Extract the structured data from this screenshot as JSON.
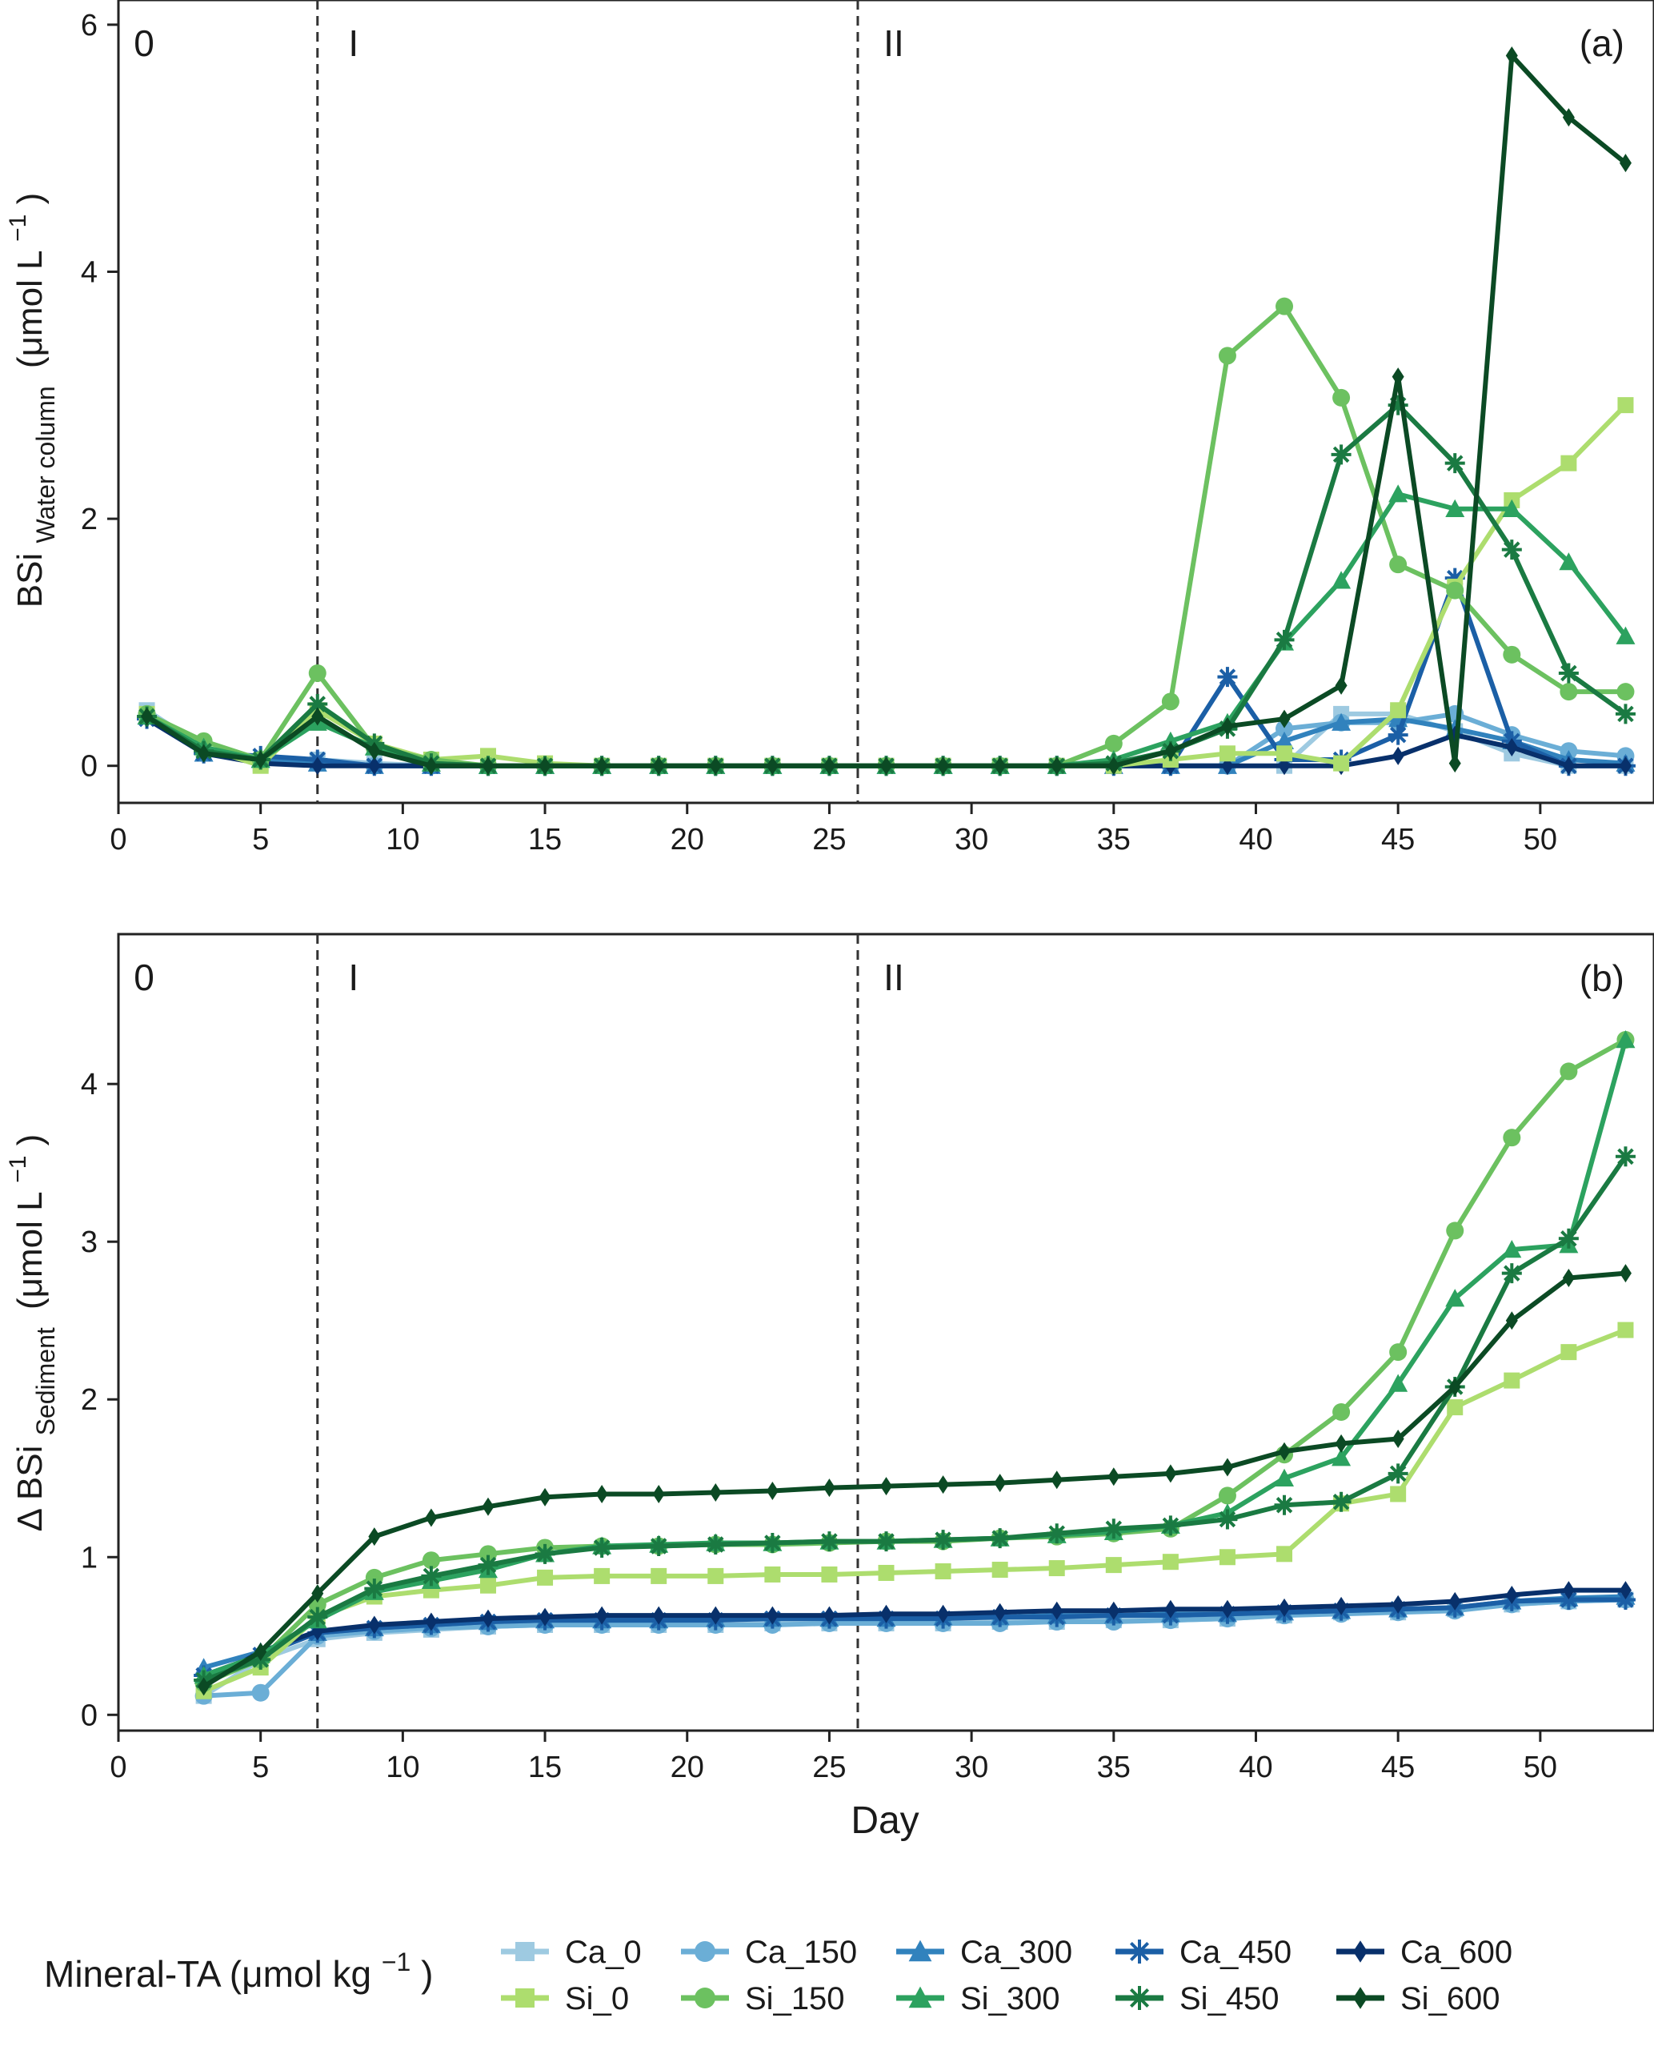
{
  "panels": [
    {
      "panel_label": "(a)",
      "ylabel_main": "BSi",
      "ylabel_sub": "Water column",
      "ylabel_unit_open": "(μmol L",
      "ylabel_unit_sup": "−1",
      "ylabel_unit_close": ")"
    },
    {
      "panel_label": "(b)",
      "ylabel_main": "Δ BSi",
      "ylabel_sub": "Sediment",
      "ylabel_unit_open": "(μmol L",
      "ylabel_unit_sup": "−1",
      "ylabel_unit_close": ")"
    }
  ],
  "phases": [
    {
      "label": "0",
      "start": 0
    },
    {
      "label": "I",
      "start": 7
    },
    {
      "label": "II",
      "start": 26
    }
  ],
  "xlabel": "Day",
  "legend": {
    "title": "Mineral-TA (μmol kg",
    "title_sup": "−1",
    "title_close": ")",
    "placement": "bottom"
  },
  "colors": {
    "Ca_0": "#9ecae1",
    "Ca_150": "#6baed6",
    "Ca_300": "#3182bd",
    "Ca_450": "#1b5fa6",
    "Ca_600": "#08306b",
    "Si_0": "#addd6e",
    "Si_150": "#6cc160",
    "Si_300": "#2ca25f",
    "Si_450": "#1a7a42",
    "Si_600": "#0b4a24"
  },
  "chart_data": [
    {
      "type": "line",
      "panel": "a",
      "xlim": [
        0,
        54
      ],
      "ylim": [
        -0.3,
        6.2
      ],
      "xticks": [
        0,
        5,
        10,
        15,
        20,
        25,
        30,
        35,
        40,
        45,
        50
      ],
      "yticks": [
        0,
        2,
        4,
        6
      ],
      "x": [
        1,
        3,
        5,
        7,
        9,
        11,
        13,
        15,
        17,
        19,
        21,
        23,
        25,
        27,
        29,
        31,
        33,
        35,
        37,
        39,
        41,
        43,
        45,
        47,
        49,
        51,
        53
      ],
      "series": [
        {
          "name": "Ca_0",
          "marker": "square",
          "values": [
            0.45,
            0.15,
            0.02,
            0.05,
            0.02,
            0.0,
            0.0,
            0.0,
            0.0,
            0.0,
            0.0,
            0.0,
            0.0,
            0.0,
            0.0,
            0.0,
            0.0,
            0.0,
            0.0,
            0.0,
            0.0,
            0.42,
            0.42,
            0.28,
            0.1,
            0.0,
            0.0
          ]
        },
        {
          "name": "Ca_150",
          "marker": "circle",
          "values": [
            0.42,
            0.12,
            0.05,
            0.02,
            0.0,
            0.0,
            0.0,
            0.0,
            0.0,
            0.0,
            0.0,
            0.0,
            0.0,
            0.0,
            0.0,
            0.0,
            0.0,
            0.0,
            0.0,
            0.0,
            0.3,
            0.35,
            0.35,
            0.42,
            0.25,
            0.12,
            0.08
          ]
        },
        {
          "name": "Ca_300",
          "marker": "triangle",
          "values": [
            0.4,
            0.1,
            0.05,
            0.02,
            0.0,
            0.0,
            0.0,
            0.0,
            0.0,
            0.0,
            0.0,
            0.0,
            0.0,
            0.0,
            0.0,
            0.0,
            0.0,
            0.0,
            0.0,
            0.0,
            0.2,
            0.35,
            0.38,
            0.3,
            0.2,
            0.05,
            0.02
          ]
        },
        {
          "name": "Ca_450",
          "marker": "asterisk",
          "values": [
            0.38,
            0.1,
            0.08,
            0.05,
            0.0,
            0.0,
            0.0,
            0.0,
            0.0,
            0.0,
            0.0,
            0.0,
            0.0,
            0.0,
            0.0,
            0.0,
            0.0,
            0.0,
            0.0,
            0.72,
            0.05,
            0.05,
            0.25,
            1.52,
            0.2,
            0.0,
            0.0
          ]
        },
        {
          "name": "Ca_600",
          "marker": "diamond",
          "values": [
            0.38,
            0.1,
            0.02,
            0.0,
            0.0,
            0.0,
            0.0,
            0.0,
            0.0,
            0.0,
            0.0,
            0.0,
            0.0,
            0.0,
            0.0,
            0.0,
            0.0,
            0.0,
            0.0,
            0.0,
            0.0,
            0.0,
            0.08,
            0.25,
            0.15,
            0.0,
            0.0
          ]
        },
        {
          "name": "Si_0",
          "marker": "square",
          "values": [
            0.42,
            0.15,
            0.0,
            0.45,
            0.18,
            0.05,
            0.08,
            0.02,
            0.0,
            0.0,
            0.0,
            0.0,
            0.0,
            0.0,
            0.0,
            0.0,
            0.0,
            0.0,
            0.05,
            0.1,
            0.1,
            0.02,
            0.45,
            1.45,
            2.15,
            2.45,
            2.92
          ]
        },
        {
          "name": "Si_150",
          "marker": "circle",
          "values": [
            0.42,
            0.2,
            0.05,
            0.75,
            0.15,
            0.05,
            0.0,
            0.0,
            0.0,
            0.0,
            0.0,
            0.0,
            0.0,
            0.0,
            0.0,
            0.0,
            0.0,
            0.18,
            0.52,
            3.32,
            3.72,
            2.98,
            1.63,
            1.42,
            0.9,
            0.6,
            0.6
          ]
        },
        {
          "name": "Si_300",
          "marker": "triangle",
          "values": [
            0.4,
            0.15,
            0.05,
            0.35,
            0.15,
            0.02,
            0.0,
            0.0,
            0.0,
            0.0,
            0.0,
            0.0,
            0.0,
            0.0,
            0.0,
            0.0,
            0.0,
            0.05,
            0.2,
            0.35,
            1.0,
            1.5,
            2.2,
            2.08,
            2.08,
            1.65,
            1.05
          ]
        },
        {
          "name": "Si_450",
          "marker": "asterisk",
          "values": [
            0.4,
            0.12,
            0.05,
            0.5,
            0.18,
            0.02,
            0.0,
            0.0,
            0.0,
            0.0,
            0.0,
            0.0,
            0.0,
            0.0,
            0.0,
            0.0,
            0.0,
            0.02,
            0.12,
            0.3,
            1.02,
            2.52,
            2.92,
            2.45,
            1.75,
            0.75,
            0.42
          ]
        },
        {
          "name": "Si_600",
          "marker": "diamond",
          "values": [
            0.4,
            0.1,
            0.05,
            0.4,
            0.12,
            0.0,
            0.0,
            0.0,
            0.0,
            0.0,
            0.0,
            0.0,
            0.0,
            0.0,
            0.0,
            0.0,
            0.0,
            0.0,
            0.12,
            0.32,
            0.38,
            0.65,
            3.15,
            0.02,
            5.75,
            5.25,
            4.88
          ]
        }
      ]
    },
    {
      "type": "line",
      "panel": "b",
      "xlabel": "Day",
      "xlim": [
        0,
        54
      ],
      "ylim": [
        -0.1,
        4.95
      ],
      "xticks": [
        0,
        5,
        10,
        15,
        20,
        25,
        30,
        35,
        40,
        45,
        50
      ],
      "yticks": [
        0,
        1,
        2,
        3,
        4
      ],
      "x": [
        3,
        5,
        7,
        9,
        11,
        13,
        15,
        17,
        19,
        21,
        23,
        25,
        27,
        29,
        31,
        33,
        35,
        37,
        39,
        41,
        43,
        45,
        47,
        49,
        51,
        53
      ],
      "series": [
        {
          "name": "Ca_0",
          "marker": "square",
          "values": [
            0.12,
            0.35,
            0.48,
            0.52,
            0.54,
            0.56,
            0.57,
            0.57,
            0.57,
            0.57,
            0.58,
            0.58,
            0.58,
            0.58,
            0.59,
            0.59,
            0.6,
            0.6,
            0.61,
            0.63,
            0.65,
            0.65,
            0.67,
            0.7,
            0.72,
            0.73
          ]
        },
        {
          "name": "Ca_150",
          "marker": "circle",
          "values": [
            0.12,
            0.14,
            0.5,
            0.53,
            0.55,
            0.56,
            0.57,
            0.57,
            0.57,
            0.57,
            0.57,
            0.58,
            0.58,
            0.58,
            0.58,
            0.59,
            0.59,
            0.6,
            0.61,
            0.63,
            0.64,
            0.65,
            0.66,
            0.7,
            0.72,
            0.73
          ]
        },
        {
          "name": "Ca_300",
          "marker": "triangle",
          "values": [
            0.3,
            0.4,
            0.52,
            0.55,
            0.57,
            0.59,
            0.6,
            0.6,
            0.6,
            0.61,
            0.61,
            0.61,
            0.61,
            0.62,
            0.62,
            0.63,
            0.63,
            0.64,
            0.64,
            0.65,
            0.66,
            0.67,
            0.68,
            0.72,
            0.74,
            0.75
          ]
        },
        {
          "name": "Ca_450",
          "marker": "asterisk",
          "values": [
            0.25,
            0.38,
            0.52,
            0.55,
            0.57,
            0.59,
            0.6,
            0.6,
            0.6,
            0.6,
            0.61,
            0.61,
            0.61,
            0.61,
            0.62,
            0.62,
            0.63,
            0.63,
            0.64,
            0.65,
            0.66,
            0.67,
            0.68,
            0.72,
            0.73,
            0.73
          ]
        },
        {
          "name": "Ca_600",
          "marker": "diamond",
          "values": [
            0.2,
            0.4,
            0.53,
            0.57,
            0.59,
            0.61,
            0.62,
            0.63,
            0.63,
            0.63,
            0.63,
            0.63,
            0.64,
            0.64,
            0.65,
            0.66,
            0.66,
            0.67,
            0.67,
            0.68,
            0.69,
            0.7,
            0.72,
            0.76,
            0.79,
            0.79
          ]
        },
        {
          "name": "Si_0",
          "marker": "square",
          "values": [
            0.15,
            0.3,
            0.62,
            0.75,
            0.79,
            0.82,
            0.87,
            0.88,
            0.88,
            0.88,
            0.89,
            0.89,
            0.9,
            0.91,
            0.92,
            0.93,
            0.95,
            0.97,
            1.0,
            1.02,
            1.34,
            1.4,
            1.95,
            2.12,
            2.3,
            2.44
          ]
        },
        {
          "name": "Si_150",
          "marker": "circle",
          "values": [
            0.2,
            0.35,
            0.7,
            0.87,
            0.98,
            1.02,
            1.06,
            1.07,
            1.07,
            1.08,
            1.08,
            1.09,
            1.1,
            1.1,
            1.12,
            1.13,
            1.15,
            1.18,
            1.39,
            1.65,
            1.92,
            2.3,
            3.07,
            3.66,
            4.08,
            4.28
          ]
        },
        {
          "name": "Si_300",
          "marker": "triangle",
          "values": [
            0.25,
            0.38,
            0.6,
            0.78,
            0.85,
            0.92,
            1.02,
            1.07,
            1.08,
            1.09,
            1.09,
            1.1,
            1.1,
            1.11,
            1.12,
            1.14,
            1.16,
            1.2,
            1.28,
            1.5,
            1.63,
            2.1,
            2.64,
            2.95,
            2.98,
            4.28
          ]
        },
        {
          "name": "Si_450",
          "marker": "asterisk",
          "values": [
            0.22,
            0.35,
            0.62,
            0.8,
            0.88,
            0.95,
            1.02,
            1.06,
            1.07,
            1.08,
            1.09,
            1.1,
            1.1,
            1.11,
            1.12,
            1.15,
            1.18,
            1.2,
            1.24,
            1.33,
            1.35,
            1.53,
            2.08,
            2.8,
            3.02,
            3.54
          ]
        },
        {
          "name": "Si_600",
          "marker": "diamond",
          "values": [
            0.18,
            0.4,
            0.77,
            1.13,
            1.25,
            1.32,
            1.38,
            1.4,
            1.4,
            1.41,
            1.42,
            1.44,
            1.45,
            1.46,
            1.47,
            1.49,
            1.51,
            1.53,
            1.57,
            1.67,
            1.72,
            1.75,
            2.08,
            2.5,
            2.77,
            2.8
          ]
        }
      ]
    }
  ]
}
